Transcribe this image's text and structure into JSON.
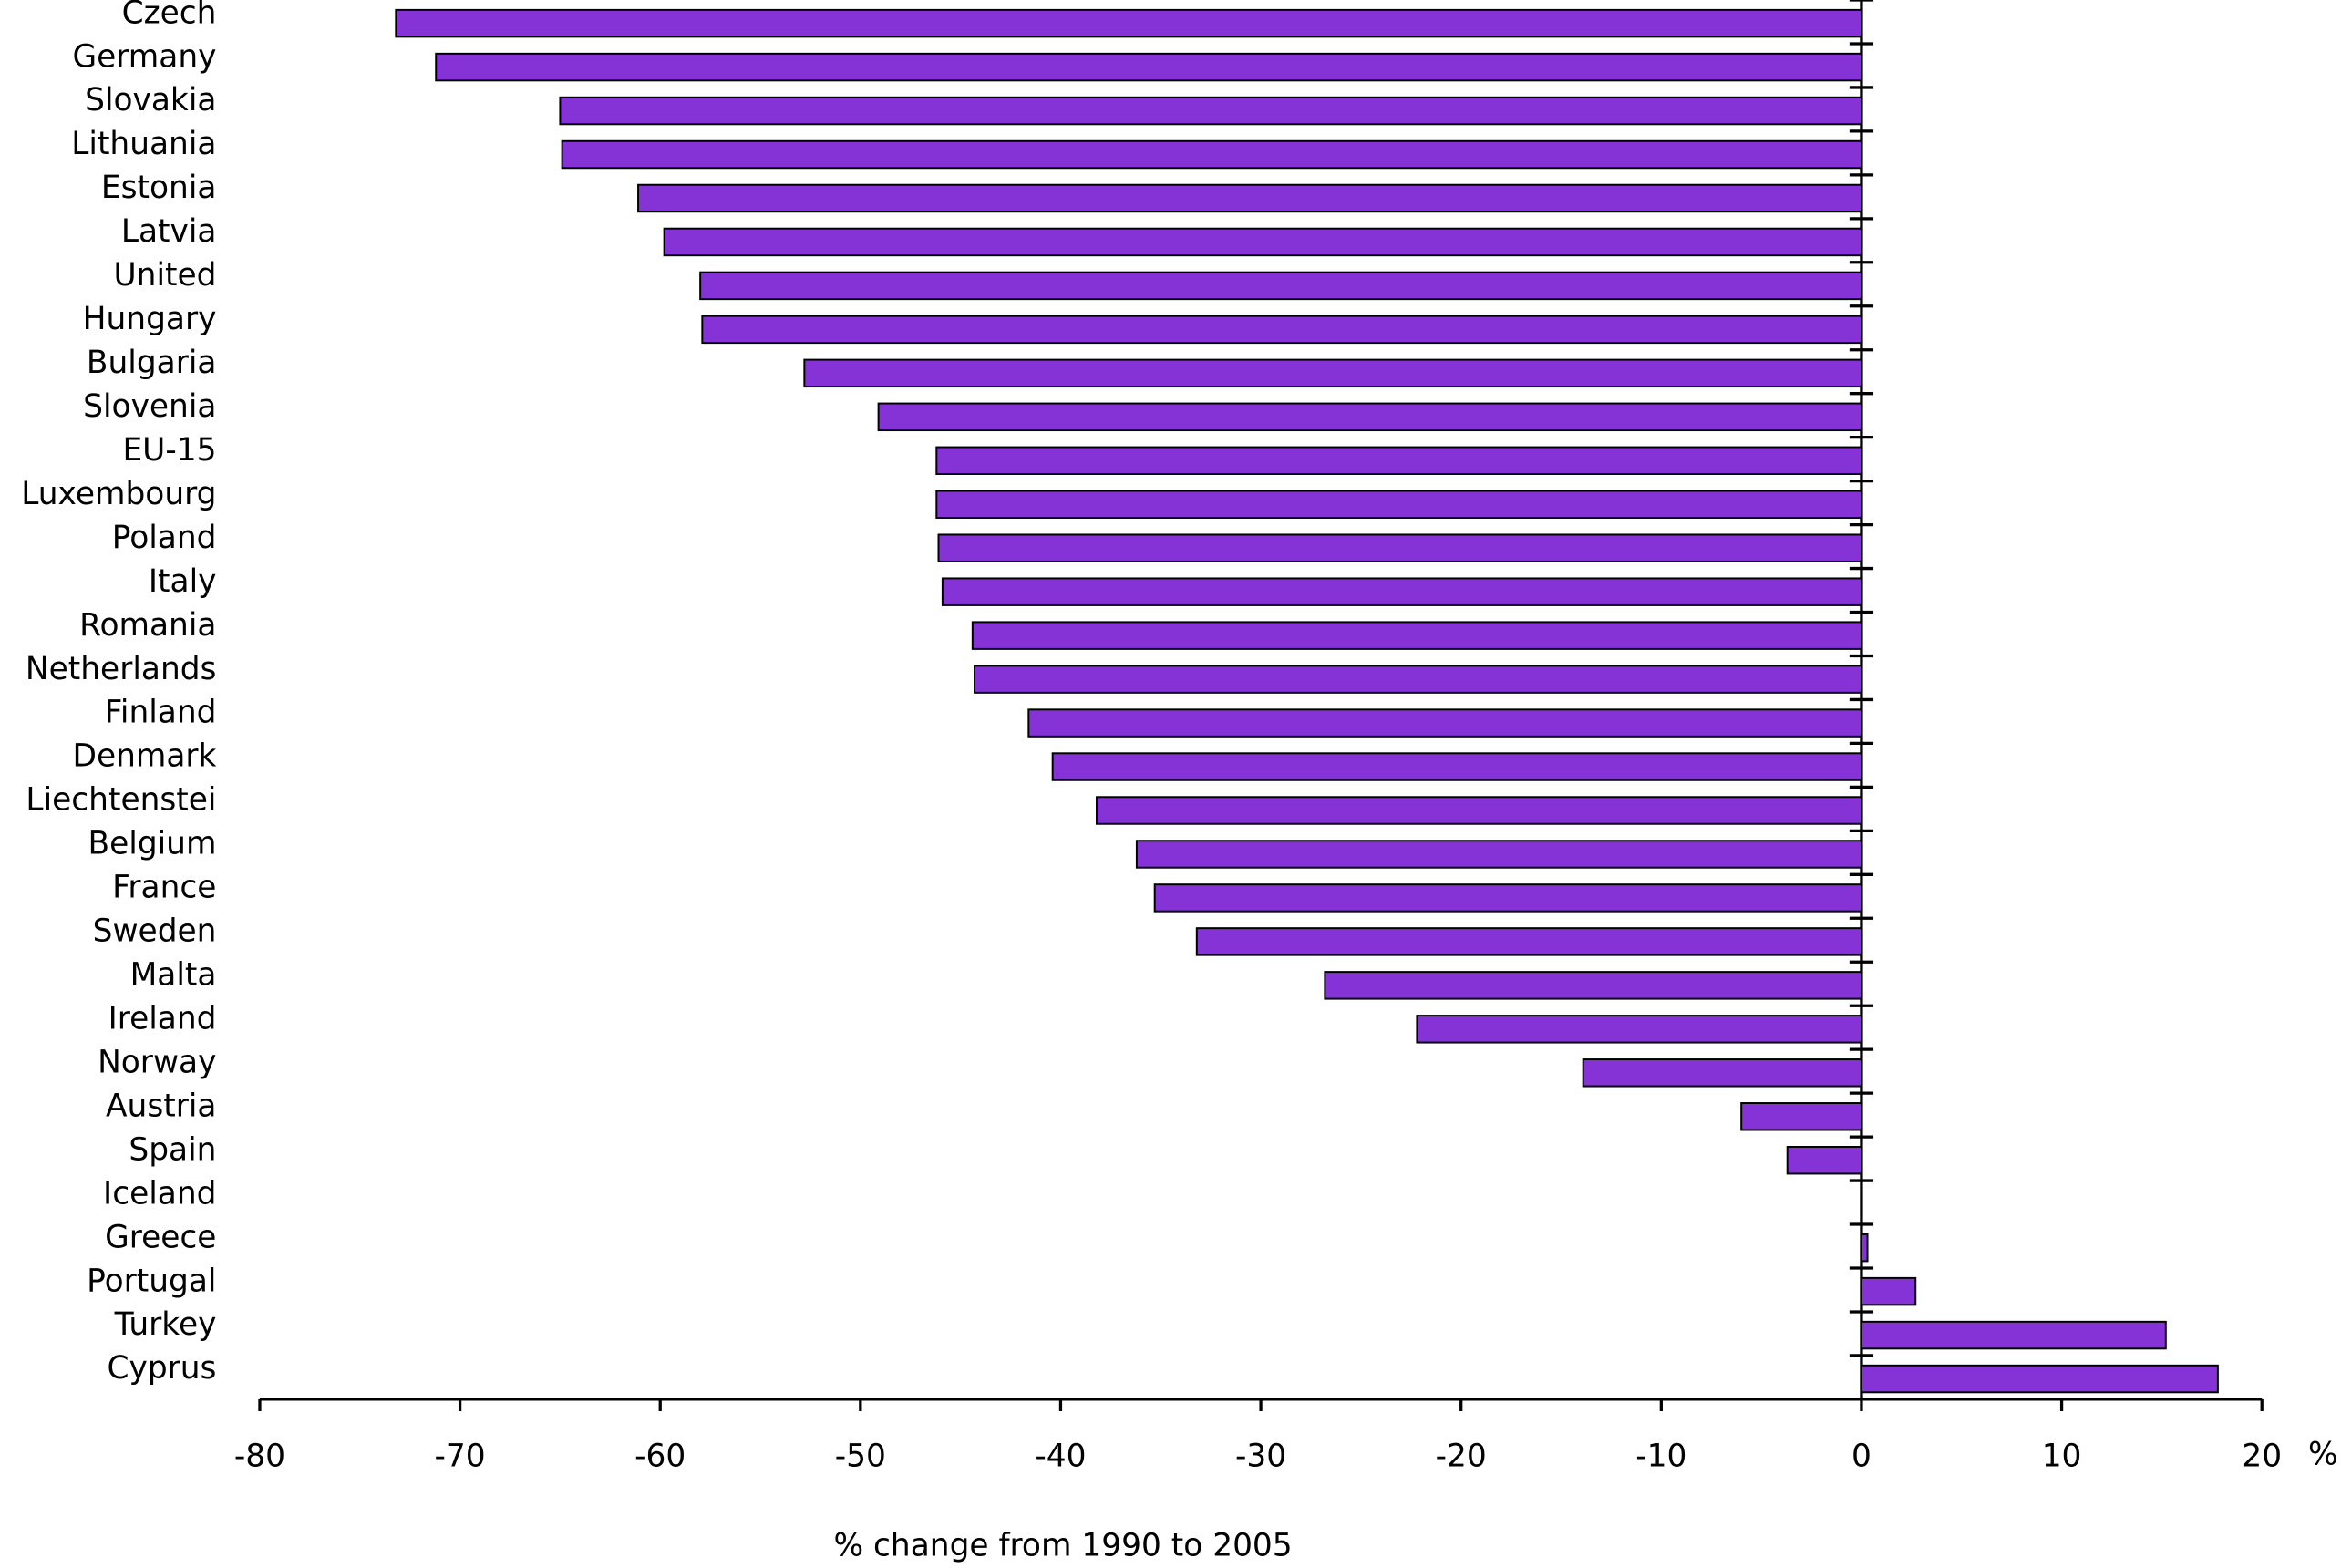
{
  "chart_data": {
    "type": "hbar",
    "xlabel": "% change from 1990 to 2005",
    "xunit": "%",
    "categories": [
      "Czech",
      "Germany",
      "Slovakia",
      "Lithuania",
      "Estonia",
      "Latvia",
      "United",
      "Hungary",
      "Bulgaria",
      "Slovenia",
      "EU-15",
      "Luxembourg",
      "Poland",
      "Italy",
      "Romania",
      "Netherlands",
      "Finland",
      "Denmark",
      "Liechtenstei",
      "Belgium",
      "France",
      "Sweden",
      "Malta",
      "Ireland",
      "Norway",
      "Austria",
      "Spain",
      "Iceland",
      "Greece",
      "Portugal",
      "Turkey",
      "Cyprus"
    ],
    "values": [
      -73.2,
      -71.2,
      -65.0,
      -64.9,
      -61.1,
      -59.8,
      -58.0,
      -57.9,
      -52.8,
      -49.1,
      -46.2,
      -46.2,
      -46.1,
      -45.9,
      -44.4,
      -44.3,
      -41.6,
      -40.4,
      -38.2,
      -36.2,
      -35.3,
      -33.2,
      -26.8,
      -22.2,
      -13.9,
      -6.0,
      -3.7,
      0,
      0.3,
      2.7,
      15.2,
      17.8
    ],
    "color": "#8533d6",
    "xlim": [
      -80,
      20
    ],
    "xticks": [
      -80,
      -70,
      -60,
      -50,
      -40,
      -30,
      -20,
      -10,
      0,
      10,
      20
    ],
    "grid": false
  }
}
